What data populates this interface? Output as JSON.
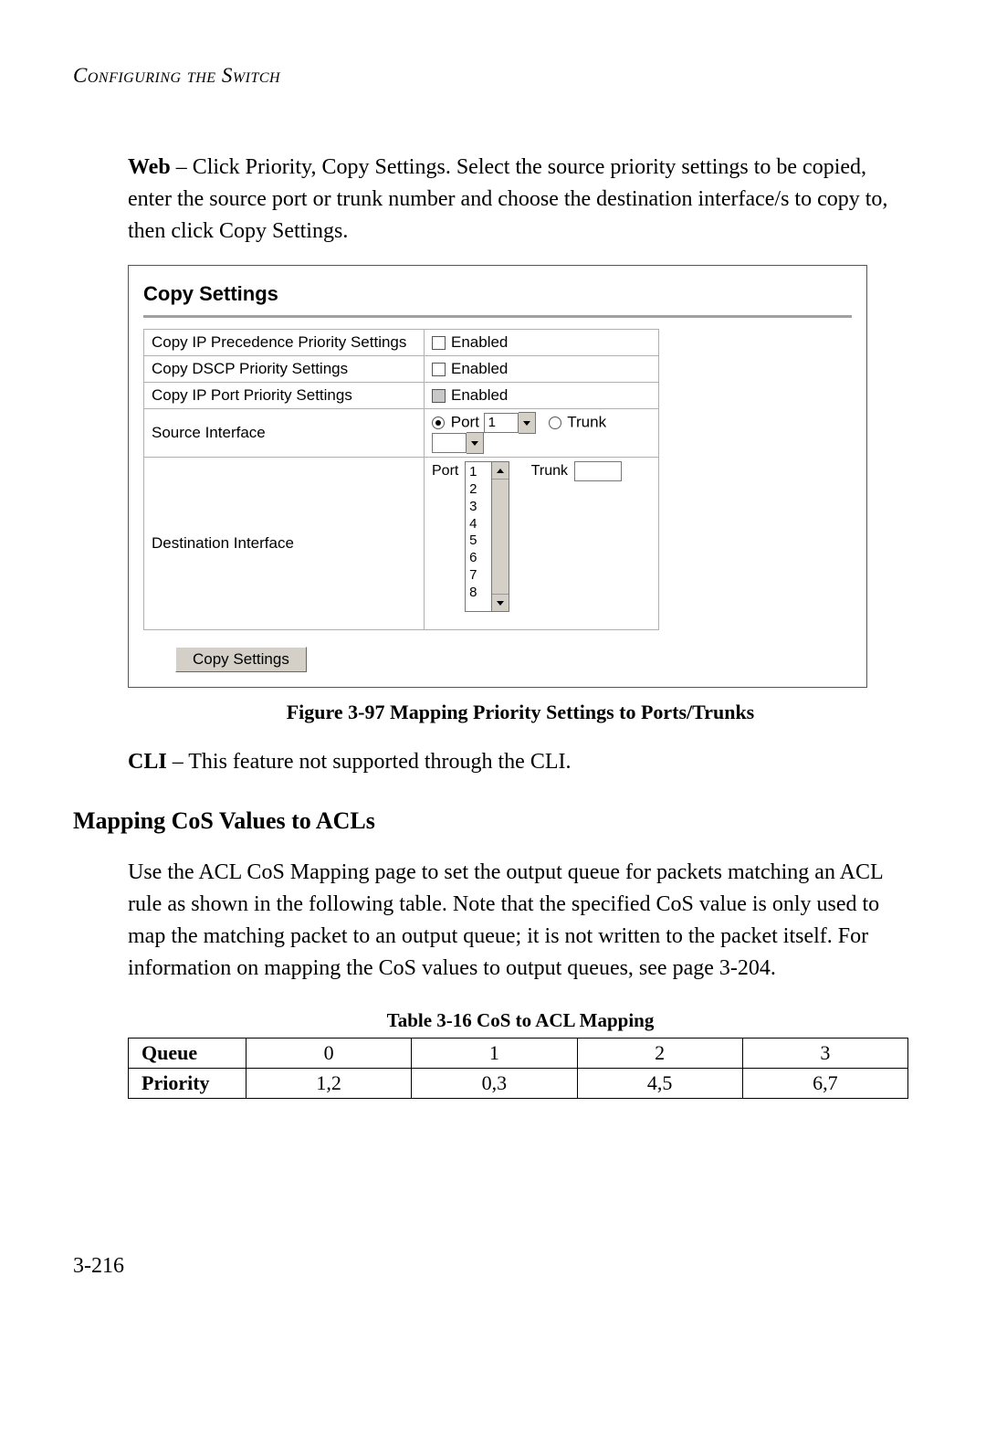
{
  "header": {
    "running": "Configuring the Switch"
  },
  "intro": {
    "lead": "Web",
    "text": " – Click Priority, Copy Settings. Select the source priority settings to be copied, enter the source port or trunk number and choose the destination interface/s to copy to, then click Copy Settings."
  },
  "figure": {
    "title": "Copy Settings",
    "rows": {
      "r1": {
        "label": "Copy IP Precedence Priority Settings",
        "check_label": "Enabled",
        "checked": false,
        "grey": false
      },
      "r2": {
        "label": "Copy DSCP Priority Settings",
        "check_label": "Enabled",
        "checked": false,
        "grey": false
      },
      "r3": {
        "label": "Copy IP Port Priority Settings",
        "check_label": "Enabled",
        "checked": false,
        "grey": true
      },
      "r4": {
        "label": "Source Interface",
        "port_label": "Port",
        "port_value": "1",
        "trunk_label": "Trunk"
      },
      "r5": {
        "label": "Destination Interface",
        "port_label": "Port",
        "port_list": [
          "1",
          "2",
          "3",
          "4",
          "5",
          "6",
          "7",
          "8"
        ],
        "trunk_label": "Trunk"
      }
    },
    "button": "Copy Settings",
    "caption": "Figure 3-97  Mapping Priority Settings to Ports/Trunks"
  },
  "cli": {
    "lead": "CLI",
    "text": " – This feature not supported through the CLI."
  },
  "section": {
    "title": "Mapping CoS Values to ACLs",
    "body": "Use the ACL CoS Mapping page to set the output queue for packets matching an ACL rule as shown in the following table. Note that the specified CoS value is only used to map the matching packet to an output queue; it is not written to the packet itself. For information on mapping the CoS values to output queues, see page 3-204."
  },
  "table": {
    "caption": "Table 3-16  CoS to ACL Mapping",
    "row1_head": "Queue",
    "row1": [
      "0",
      "1",
      "2",
      "3"
    ],
    "row2_head": "Priority",
    "row2": [
      "1,2",
      "0,3",
      "4,5",
      "6,7"
    ]
  },
  "pagenum": "3-216"
}
